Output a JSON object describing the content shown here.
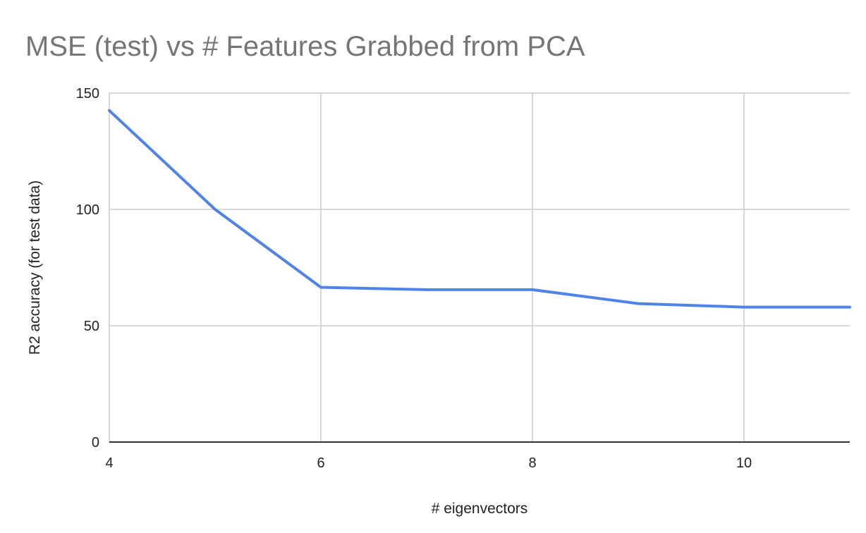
{
  "chart_data": {
    "type": "line",
    "title": "MSE (test) vs # Features Grabbed from PCA",
    "xlabel": "# eigenvectors",
    "ylabel": "R2 accuracy (for test data)",
    "xlim": [
      4,
      11
    ],
    "ylim": [
      0,
      150
    ],
    "x_ticks": [
      4,
      6,
      8,
      10
    ],
    "y_ticks": [
      0,
      50,
      100,
      150
    ],
    "grid": true,
    "legend": "none",
    "series": [
      {
        "color": "#5083e8",
        "x": [
          4,
          5,
          6,
          7,
          8,
          9,
          10,
          11
        ],
        "y": [
          142.5,
          100,
          66.5,
          65.5,
          65.5,
          59.5,
          58,
          58
        ]
      }
    ]
  }
}
